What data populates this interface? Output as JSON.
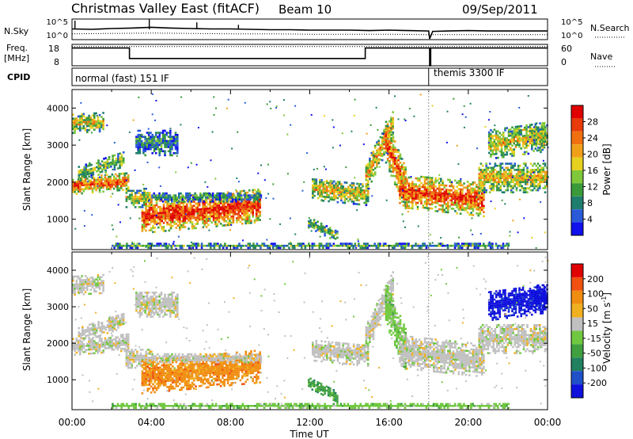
{
  "header": {
    "title": "Christmas Valley East (fitACF)",
    "beam": "Beam 10",
    "date": "09/Sep/2011"
  },
  "colors": {
    "axis": "#000000",
    "background": "#ffffff",
    "ground_scatter": "#c0c0c0"
  },
  "chart_data": [
    {
      "type": "line",
      "panel": "noise",
      "ylabel": "N.Sky",
      "y2label": "N.Search",
      "yticks": [
        "10^0",
        "10^5"
      ],
      "y2ticks": [
        "10^0",
        "10^5"
      ],
      "xlim": [
        0,
        24
      ],
      "series": [
        {
          "name": "N.Sky",
          "style": "solid",
          "x": [
            0,
            1,
            2,
            3,
            4,
            5,
            6,
            7,
            8,
            9,
            10,
            11,
            12,
            13,
            14,
            15,
            16,
            17,
            18,
            18.05,
            18.2,
            19,
            20,
            21,
            22,
            23,
            24
          ],
          "y": [
            2.6,
            2.5,
            2.7,
            2.8,
            3.0,
            2.8,
            2.7,
            2.6,
            2.6,
            2.5,
            2.4,
            2.4,
            2.3,
            2.3,
            2.3,
            2.2,
            2.3,
            2.2,
            2.1,
            0.2,
            2.0,
            2.1,
            2.2,
            2.1,
            2.1,
            2.1,
            2.1
          ]
        },
        {
          "name": "N.Search",
          "style": "dotted",
          "x": [
            0,
            2,
            4,
            6,
            8,
            10,
            12,
            14,
            16,
            18,
            20,
            22,
            24
          ],
          "y": [
            1.4,
            1.5,
            1.6,
            1.5,
            1.4,
            1.4,
            1.3,
            1.3,
            1.3,
            1.2,
            1.2,
            1.2,
            1.2
          ]
        }
      ]
    },
    {
      "type": "line",
      "panel": "frequency",
      "ylabel": "Freq.",
      "yunit": "[MHz]",
      "y2label": "Nave",
      "ylim": [
        8,
        18
      ],
      "yticks": [
        8,
        18
      ],
      "y2lim": [
        0,
        60
      ],
      "y2ticks": [
        0,
        60
      ],
      "xlim": [
        0,
        24
      ],
      "series": [
        {
          "name": "Freq.",
          "style": "solid",
          "x": [
            0,
            2.9,
            2.9,
            14.8,
            14.8,
            18.05,
            18.05,
            18.1,
            18.1,
            24
          ],
          "y": [
            16.3,
            16.3,
            11.4,
            11.4,
            16.3,
            16.3,
            8,
            8,
            16.3,
            16.3
          ]
        },
        {
          "name": "Nave",
          "style": "dotted",
          "x": [
            0,
            24
          ],
          "y": [
            17,
            17
          ]
        }
      ]
    },
    {
      "type": "table",
      "panel": "cpid",
      "label": "CPID",
      "segments": [
        {
          "start": 0,
          "end": 18,
          "text": "normal (fast) 151 IF"
        },
        {
          "start": 18,
          "end": 24,
          "text": "themis 3300 IF"
        }
      ]
    },
    {
      "type": "heatmap",
      "panel": "power",
      "ylabel": "Slant Range [km]",
      "ylim": [
        180,
        4500
      ],
      "yticks": [
        1000,
        2000,
        3000,
        4000
      ],
      "xlim": [
        0,
        24
      ],
      "colorbar": {
        "label": "Power [dB]",
        "ticks": [
          4,
          8,
          12,
          16,
          20,
          24,
          28
        ],
        "colors": [
          "#1010ee",
          "#2a5ad8",
          "#1e7e6e",
          "#3a9a3a",
          "#7ec83a",
          "#e6d020",
          "#f0a018",
          "#f07010",
          "#e83a0a",
          "#e00000"
        ]
      }
    },
    {
      "type": "heatmap",
      "panel": "velocity",
      "ylabel": "Slant Range [km]",
      "ylim": [
        180,
        4500
      ],
      "yticks": [
        1000,
        2000,
        3000,
        4000
      ],
      "xlabel": "Time UT",
      "xticks": [
        "00:00",
        "04:00",
        "08:00",
        "12:00",
        "16:00",
        "20:00",
        "00:00"
      ],
      "xlim": [
        0,
        24
      ],
      "colorbar": {
        "label_main": "Velocity",
        "label_unit": "[m s",
        "label_exp": "-1",
        "ticks": [
          "200",
          "100",
          "50",
          "15",
          "-15",
          "-50",
          "-100",
          "-200"
        ],
        "colors": [
          "#1010dd",
          "#2050c8",
          "#208060",
          "#40a040",
          "#70c840",
          "#c0c0c0",
          "#f0b020",
          "#f08c10",
          "#f05010",
          "#e00000"
        ]
      }
    }
  ]
}
